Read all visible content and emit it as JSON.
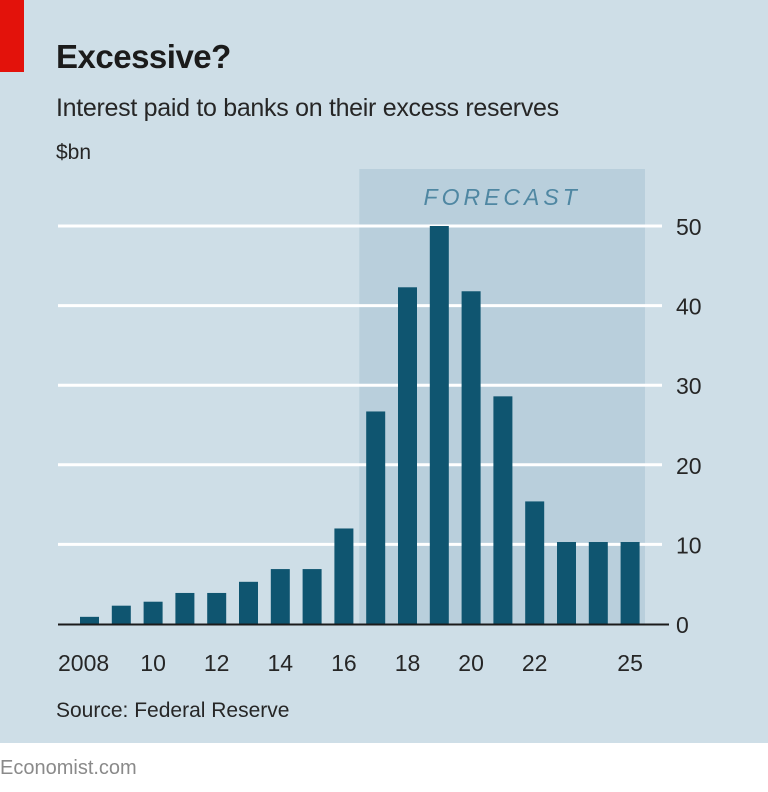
{
  "header": {
    "title": "Excessive?",
    "subtitle": "Interest paid to banks on their excess reserves",
    "unit": "$bn"
  },
  "source": "Source: Federal Reserve",
  "footer": "Economist.com",
  "colors": {
    "background": "#cedee7",
    "forecast_band": "#b9cfdc",
    "bar": "#0f5570",
    "accent": "#e3120b",
    "gridline": "#ffffff",
    "baseline": "#1b1b1b"
  },
  "chart_data": {
    "type": "bar",
    "title": "Excessive?",
    "subtitle": "Interest paid to banks on their excess reserves",
    "ylabel": "$bn",
    "xlabel": "",
    "ylim": [
      0,
      50
    ],
    "yticks": [
      0,
      10,
      20,
      30,
      40,
      50
    ],
    "y_axis_position": "right",
    "grid": true,
    "categories": [
      "2008",
      "2009",
      "2010",
      "2011",
      "2012",
      "2013",
      "2014",
      "2015",
      "2016",
      "2017",
      "2018",
      "2019",
      "2020",
      "2021",
      "2022",
      "2023",
      "2024",
      "2025"
    ],
    "x_tick_labels": [
      {
        "category": "2008",
        "label": "2008"
      },
      {
        "category": "2010",
        "label": "10"
      },
      {
        "category": "2012",
        "label": "12"
      },
      {
        "category": "2014",
        "label": "14"
      },
      {
        "category": "2016",
        "label": "16"
      },
      {
        "category": "2018",
        "label": "18"
      },
      {
        "category": "2020",
        "label": "20"
      },
      {
        "category": "2022",
        "label": "22"
      },
      {
        "category": "2025",
        "label": "25"
      }
    ],
    "values": [
      0.9,
      2.3,
      2.8,
      3.9,
      3.9,
      5.3,
      6.9,
      6.9,
      12.0,
      26.7,
      42.3,
      50.0,
      41.8,
      28.6,
      15.4,
      10.3,
      10.3,
      10.3
    ],
    "annotations": [
      {
        "text": "FORECAST",
        "span": [
          "2017",
          "2025"
        ],
        "type": "shaded-region"
      }
    ],
    "source": "Federal Reserve"
  }
}
